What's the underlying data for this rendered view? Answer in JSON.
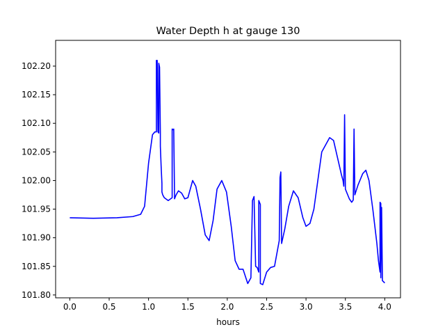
{
  "chart_data": {
    "type": "line",
    "title": "Water Depth h at gauge 130",
    "xlabel": "hours",
    "ylabel": "",
    "xlim": [
      -0.18,
      4.2
    ],
    "ylim": [
      101.795,
      102.245
    ],
    "xticks": [
      "0.0",
      "0.5",
      "1.0",
      "1.5",
      "2.0",
      "2.5",
      "3.0",
      "3.5",
      "4.0"
    ],
    "yticks": [
      "101.80",
      "101.85",
      "101.90",
      "101.95",
      "102.00",
      "102.05",
      "102.10",
      "102.15",
      "102.20"
    ],
    "grid": false,
    "legend": "none",
    "series": [
      {
        "color": "#0000ff",
        "x": [
          0.0,
          0.3,
          0.6,
          0.8,
          0.9,
          0.95,
          1.0,
          1.05,
          1.08,
          1.1,
          1.1,
          1.11,
          1.12,
          1.13,
          1.13,
          1.14,
          1.15,
          1.15,
          1.16,
          1.17,
          1.17,
          1.18,
          1.2,
          1.25,
          1.3,
          1.3,
          1.32,
          1.32,
          1.33,
          1.33,
          1.35,
          1.38,
          1.42,
          1.46,
          1.5,
          1.56,
          1.6,
          1.66,
          1.72,
          1.77,
          1.82,
          1.87,
          1.93,
          1.99,
          2.05,
          2.1,
          2.15,
          2.2,
          2.26,
          2.3,
          2.32,
          2.34,
          2.36,
          2.38,
          2.4,
          2.4,
          2.42,
          2.42,
          2.45,
          2.5,
          2.55,
          2.6,
          2.66,
          2.67,
          2.68,
          2.69,
          2.73,
          2.78,
          2.84,
          2.9,
          2.96,
          3.0,
          3.05,
          3.1,
          3.2,
          3.3,
          3.35,
          3.4,
          3.45,
          3.47,
          3.48,
          3.49,
          3.5,
          3.55,
          3.58,
          3.6,
          3.61,
          3.62,
          3.66,
          3.72,
          3.76,
          3.8,
          3.85,
          3.9,
          3.92,
          3.94,
          3.94,
          3.95,
          3.95,
          3.96,
          3.97,
          3.97,
          4.0
        ],
        "y": [
          101.935,
          101.934,
          101.935,
          101.937,
          101.941,
          101.955,
          102.03,
          102.08,
          102.085,
          102.085,
          102.21,
          102.21,
          102.085,
          102.083,
          102.205,
          102.198,
          102.085,
          102.06,
          102.025,
          101.995,
          101.98,
          101.975,
          101.97,
          101.965,
          101.97,
          102.09,
          102.088,
          102.09,
          101.975,
          101.968,
          101.975,
          101.982,
          101.978,
          101.968,
          101.97,
          102.0,
          101.99,
          101.95,
          101.905,
          101.895,
          101.93,
          101.985,
          102.0,
          101.98,
          101.92,
          101.86,
          101.845,
          101.845,
          101.82,
          101.83,
          101.965,
          101.972,
          101.85,
          101.848,
          101.84,
          101.965,
          101.958,
          101.82,
          101.818,
          101.84,
          101.848,
          101.85,
          101.895,
          102.005,
          102.015,
          101.89,
          101.915,
          101.955,
          101.982,
          101.97,
          101.935,
          101.92,
          101.925,
          101.95,
          102.05,
          102.075,
          102.07,
          102.04,
          102.01,
          102.0,
          101.99,
          102.115,
          101.985,
          101.968,
          101.962,
          101.966,
          102.09,
          101.975,
          101.992,
          102.012,
          102.018,
          102.0,
          101.948,
          101.89,
          101.86,
          101.84,
          101.962,
          101.96,
          101.83,
          101.953,
          101.83,
          101.825,
          101.821
        ]
      }
    ]
  }
}
